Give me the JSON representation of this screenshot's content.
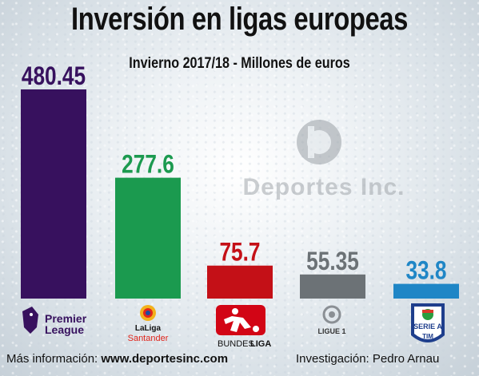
{
  "title": "Inversión en ligas europeas",
  "subtitle": "Invierno 2017/18 - Millones de euros",
  "watermark": "Deportes Inc.",
  "footer": {
    "left_prefix": "Más información:",
    "left_link": "www.deportesinc.com",
    "right": "Investigación: Pedro Arnau"
  },
  "logos": {
    "premier": [
      "Premier",
      "League"
    ],
    "laliga": [
      "LaLiga",
      "Santander"
    ],
    "bundesliga": [
      "BUNDES",
      "LIGA"
    ],
    "ligue1": "LIGUE 1",
    "seriea": [
      "SERIE A",
      "TIM"
    ]
  },
  "chart_data": {
    "type": "bar",
    "title": "Inversión en ligas europeas",
    "subtitle": "Invierno 2017/18 - Millones de euros",
    "categories": [
      "Premier League",
      "LaLiga Santander",
      "Bundesliga",
      "Ligue 1",
      "Serie A TIM"
    ],
    "values": [
      480.45,
      277.6,
      75.7,
      55.35,
      33.8
    ],
    "value_labels": [
      "480.45",
      "277.6",
      "75.7",
      "55.35",
      "33.8"
    ],
    "colors": [
      "#37115e",
      "#1b9a4f",
      "#c41017",
      "#6c7276",
      "#1f86c6"
    ],
    "ylim": [
      0,
      480.45
    ],
    "grid": false,
    "legend": "none"
  }
}
